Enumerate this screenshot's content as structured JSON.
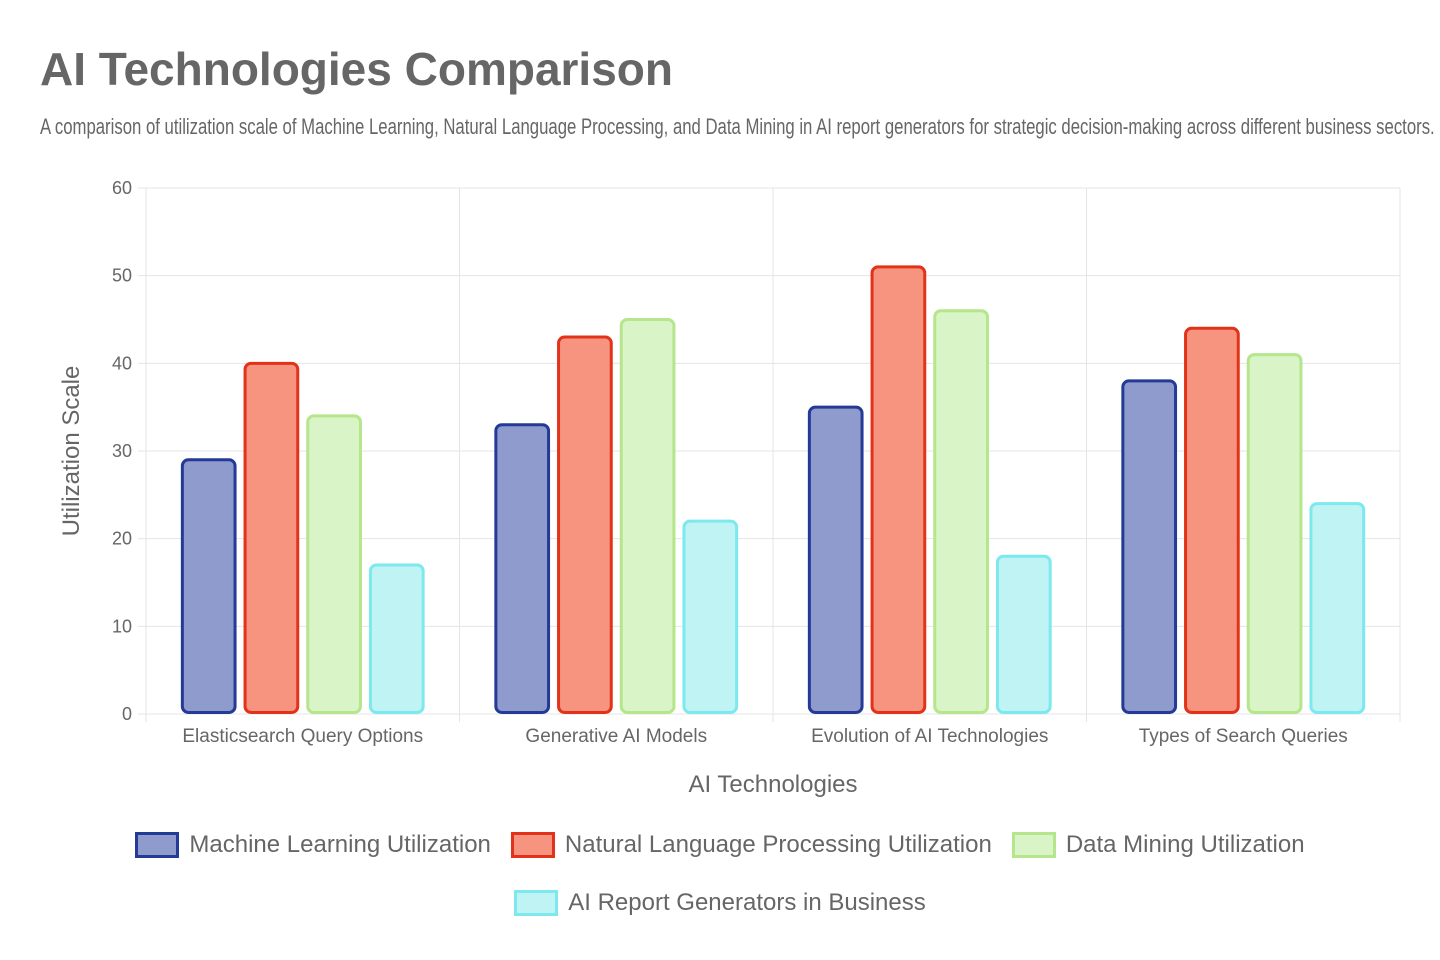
{
  "title": "AI Technologies Comparison",
  "subtitle": "A comparison of utilization scale of Machine Learning, Natural Language Processing, and Data Mining in AI report generators for strategic decision-making across different business sectors.",
  "chart_data": {
    "type": "bar",
    "xlabel": "AI Technologies",
    "ylabel": "Utilization Scale",
    "ylim": [
      0,
      60
    ],
    "yticks": [
      0,
      10,
      20,
      30,
      40,
      50,
      60
    ],
    "grid": true,
    "legend_position": "bottom",
    "categories": [
      "Elasticsearch Query Options",
      "Generative AI Models",
      "Evolution of AI Technologies",
      "Types of Search Queries"
    ],
    "series": [
      {
        "name": "Machine Learning Utilization",
        "values": [
          29,
          33,
          35,
          38
        ],
        "fill": "#8f9bcd",
        "stroke": "#233a96"
      },
      {
        "name": "Natural Language Processing Utilization",
        "values": [
          40,
          43,
          51,
          44
        ],
        "fill": "#f6947f",
        "stroke": "#e2331a"
      },
      {
        "name": "Data Mining Utilization",
        "values": [
          34,
          45,
          46,
          41
        ],
        "fill": "#d9f4c6",
        "stroke": "#b5e68c"
      },
      {
        "name": "AI Report Generators in Business",
        "values": [
          17,
          22,
          18,
          24
        ],
        "fill": "#c0f4f4",
        "stroke": "#7ce9ee"
      }
    ]
  }
}
